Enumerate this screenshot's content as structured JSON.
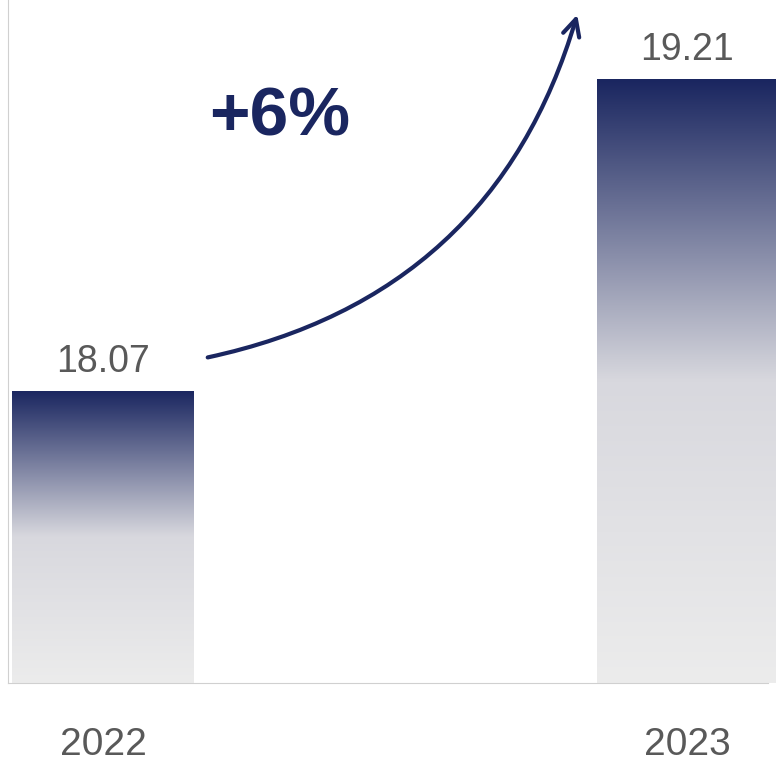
{
  "chart_data": {
    "type": "bar",
    "categories": [
      "2022",
      "2023"
    ],
    "values": [
      18.07,
      19.21
    ],
    "color": "#1a2660",
    "ylim": [
      17,
      19.5
    ],
    "yticks": [],
    "tick_labels": "x",
    "data_labels": true,
    "annotations": [
      "+6%"
    ]
  }
}
